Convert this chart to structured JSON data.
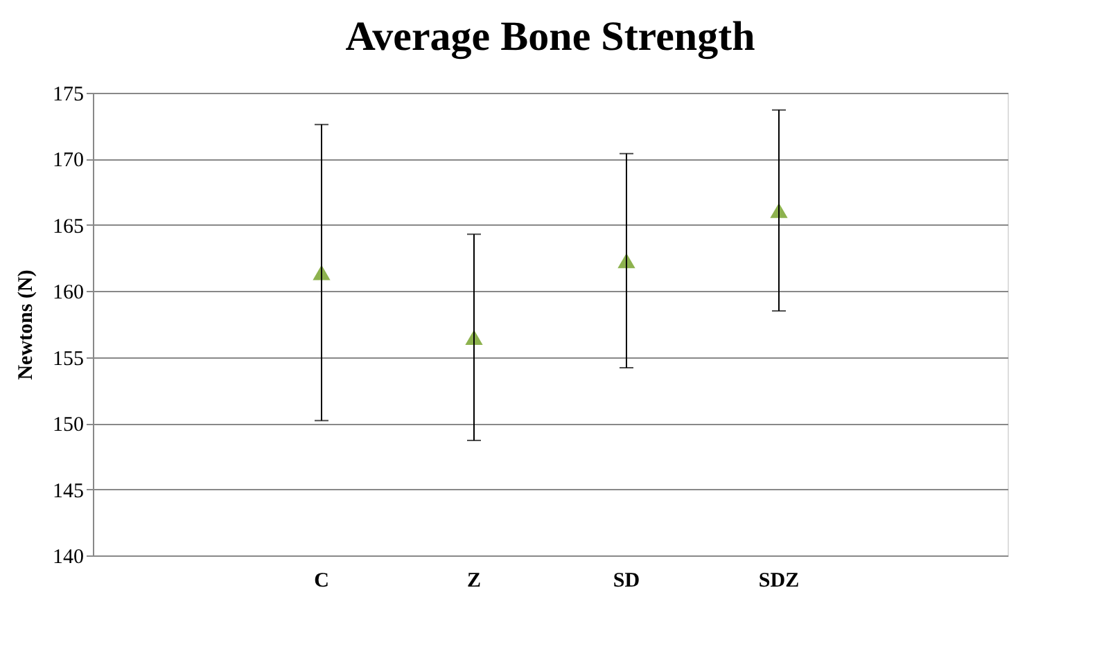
{
  "chart_data": {
    "type": "scatter",
    "title": "Average Bone Strength",
    "ylabel": "Newtons (N)",
    "categories": [
      "C",
      "Z",
      "SD",
      "SDZ"
    ],
    "series": [
      {
        "color": "#8db24e",
        "values": [
          161.4,
          156.5,
          162.3,
          166.1
        ],
        "errors": [
          11.2,
          7.8,
          8.1,
          7.6
        ]
      }
    ],
    "marker": "triangle",
    "ylim": [
      140,
      175
    ],
    "yticks": [
      140,
      145,
      150,
      155,
      160,
      165,
      170,
      175
    ],
    "grid": "y"
  }
}
